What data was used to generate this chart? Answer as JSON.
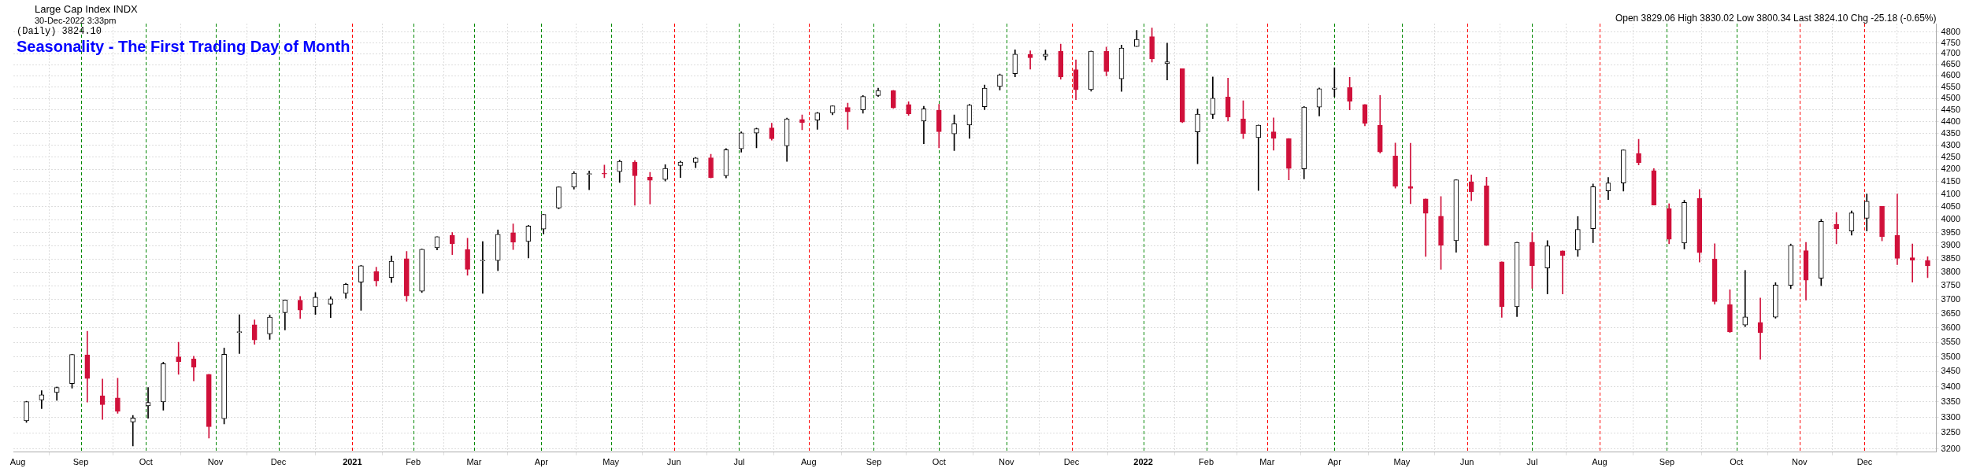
{
  "chart_data": {
    "type": "candlestick",
    "title": "Seasonality - The First Trading Day of Month",
    "subtitle": "Large Cap Index INDX",
    "annotations": [
      "30-Dec-2022 3:33pm",
      "(Daily) 3824.10",
      "Open 3829.06 High 3830.02 Low 3800.34 Last 3824.10 Chg -25.18 (-0.65%)"
    ],
    "x": [
      "2020-08-07",
      "2020-08-14",
      "2020-08-21",
      "2020-08-28",
      "2020-09-04",
      "2020-09-11",
      "2020-09-18",
      "2020-09-25",
      "2020-10-02",
      "2020-10-09",
      "2020-10-16",
      "2020-10-23",
      "2020-10-30",
      "2020-11-06",
      "2020-11-13",
      "2020-11-20",
      "2020-11-27",
      "2020-12-04",
      "2020-12-11",
      "2020-12-18",
      "2020-12-25",
      "2021-01-01",
      "2021-01-08",
      "2021-01-15",
      "2021-01-22",
      "2021-01-29",
      "2021-02-05",
      "2021-02-12",
      "2021-02-19",
      "2021-02-26",
      "2021-03-05",
      "2021-03-12",
      "2021-03-19",
      "2021-03-26",
      "2021-04-02",
      "2021-04-09",
      "2021-04-16",
      "2021-04-23",
      "2021-04-30",
      "2021-05-07",
      "2021-05-14",
      "2021-05-21",
      "2021-05-28",
      "2021-06-04",
      "2021-06-11",
      "2021-06-18",
      "2021-06-25",
      "2021-07-02",
      "2021-07-09",
      "2021-07-16",
      "2021-07-23",
      "2021-07-30",
      "2021-08-06",
      "2021-08-13",
      "2021-08-20",
      "2021-08-27",
      "2021-09-03",
      "2021-09-10",
      "2021-09-17",
      "2021-09-24",
      "2021-10-01",
      "2021-10-08",
      "2021-10-15",
      "2021-10-22",
      "2021-10-29",
      "2021-11-05",
      "2021-11-12",
      "2021-11-19",
      "2021-11-26",
      "2021-12-03",
      "2021-12-10",
      "2021-12-17",
      "2021-12-24",
      "2021-12-31",
      "2022-01-07",
      "2022-01-14",
      "2022-01-21",
      "2022-01-28",
      "2022-02-04",
      "2022-02-11",
      "2022-02-18",
      "2022-02-25",
      "2022-03-04",
      "2022-03-11",
      "2022-03-18",
      "2022-03-25",
      "2022-04-01",
      "2022-04-08",
      "2022-04-15",
      "2022-04-22",
      "2022-04-29",
      "2022-05-06",
      "2022-05-13",
      "2022-05-20",
      "2022-05-27",
      "2022-06-03",
      "2022-06-10",
      "2022-06-17",
      "2022-06-24",
      "2022-07-01",
      "2022-07-08",
      "2022-07-15",
      "2022-07-22",
      "2022-07-29",
      "2022-08-05",
      "2022-08-12",
      "2022-08-19",
      "2022-08-26",
      "2022-09-02",
      "2022-09-09",
      "2022-09-16",
      "2022-09-23",
      "2022-09-30",
      "2022-10-07",
      "2022-10-14",
      "2022-10-21",
      "2022-10-28",
      "2022-11-04",
      "2022-11-11",
      "2022-11-18",
      "2022-11-25",
      "2022-12-02",
      "2022-12-09",
      "2022-12-16",
      "2022-12-23",
      "2022-12-30"
    ],
    "ohlc": [
      [
        3289,
        3352,
        3284,
        3351
      ],
      [
        3356,
        3387,
        3328,
        3373
      ],
      [
        3381,
        3399,
        3355,
        3397
      ],
      [
        3410,
        3509,
        3395,
        3508
      ],
      [
        3507,
        3588,
        3349,
        3427
      ],
      [
        3370,
        3425,
        3293,
        3341
      ],
      [
        3363,
        3428,
        3313,
        3319
      ],
      [
        3285,
        3306,
        3209,
        3298
      ],
      [
        3337,
        3397,
        3297,
        3348
      ],
      [
        3350,
        3482,
        3323,
        3477
      ],
      [
        3500,
        3550,
        3441,
        3484
      ],
      [
        3493,
        3502,
        3419,
        3465
      ],
      [
        3441,
        3441,
        3234,
        3270
      ],
      [
        3296,
        3530,
        3279,
        3509
      ],
      [
        3584,
        3646,
        3511,
        3585
      ],
      [
        3611,
        3628,
        3543,
        3558
      ],
      [
        3579,
        3645,
        3560,
        3638
      ],
      [
        3654,
        3699,
        3593,
        3699
      ],
      [
        3698,
        3712,
        3633,
        3663
      ],
      [
        3675,
        3726,
        3647,
        3709
      ],
      [
        3684,
        3711,
        3636,
        3703
      ],
      [
        3723,
        3760,
        3705,
        3756
      ],
      [
        3764,
        3826,
        3662,
        3824
      ],
      [
        3803,
        3819,
        3749,
        3768
      ],
      [
        3781,
        3861,
        3762,
        3841
      ],
      [
        3851,
        3878,
        3694,
        3714
      ],
      [
        3731,
        3887,
        3726,
        3886
      ],
      [
        3892,
        3934,
        3884,
        3934
      ],
      [
        3939,
        3950,
        3866,
        3907
      ],
      [
        3885,
        3928,
        3789,
        3811
      ],
      [
        3842,
        3915,
        3723,
        3842
      ],
      [
        3844,
        3960,
        3806,
        3943
      ],
      [
        3949,
        3983,
        3885,
        3913
      ],
      [
        3916,
        3978,
        3853,
        3975
      ],
      [
        3963,
        4020,
        3944,
        4020
      ],
      [
        4045,
        4129,
        4042,
        4129
      ],
      [
        4128,
        4191,
        4120,
        4185
      ],
      [
        4180,
        4194,
        4118,
        4180
      ],
      [
        4185,
        4218,
        4166,
        4181
      ],
      [
        4191,
        4238,
        4147,
        4233
      ],
      [
        4229,
        4236,
        4056,
        4174
      ],
      [
        4169,
        4188,
        4061,
        4156
      ],
      [
        4159,
        4219,
        4153,
        4204
      ],
      [
        4216,
        4234,
        4167,
        4230
      ],
      [
        4229,
        4249,
        4207,
        4247
      ],
      [
        4248,
        4262,
        4165,
        4166
      ],
      [
        4174,
        4286,
        4165,
        4281
      ],
      [
        4285,
        4356,
        4271,
        4352
      ],
      [
        4351,
        4372,
        4289,
        4370
      ],
      [
        4373,
        4393,
        4321,
        4327
      ],
      [
        4297,
        4415,
        4233,
        4412
      ],
      [
        4409,
        4429,
        4365,
        4395
      ],
      [
        4406,
        4440,
        4367,
        4437
      ],
      [
        4438,
        4468,
        4429,
        4468
      ],
      [
        4461,
        4480,
        4367,
        4442
      ],
      [
        4450,
        4513,
        4436,
        4509
      ],
      [
        4513,
        4545,
        4509,
        4535
      ],
      [
        4535,
        4536,
        4457,
        4459
      ],
      [
        4474,
        4486,
        4427,
        4433
      ],
      [
        4402,
        4466,
        4306,
        4455
      ],
      [
        4449,
        4475,
        4289,
        4357
      ],
      [
        4348,
        4429,
        4278,
        4391
      ],
      [
        4385,
        4475,
        4329,
        4471
      ],
      [
        4464,
        4559,
        4451,
        4545
      ],
      [
        4553,
        4608,
        4537,
        4605
      ],
      [
        4610,
        4718,
        4596,
        4698
      ],
      [
        4697,
        4714,
        4630,
        4682
      ],
      [
        4689,
        4717,
        4672,
        4698
      ],
      [
        4712,
        4744,
        4585,
        4595
      ],
      [
        4628,
        4672,
        4495,
        4538
      ],
      [
        4539,
        4713,
        4532,
        4712
      ],
      [
        4712,
        4731,
        4600,
        4620
      ],
      [
        4587,
        4740,
        4531,
        4726
      ],
      [
        4733,
        4808,
        4733,
        4766
      ],
      [
        4779,
        4819,
        4662,
        4677
      ],
      [
        4655,
        4749,
        4582,
        4663
      ],
      [
        4632,
        4632,
        4395,
        4398
      ],
      [
        4356,
        4454,
        4223,
        4432
      ],
      [
        4431,
        4595,
        4413,
        4501
      ],
      [
        4506,
        4590,
        4402,
        4419
      ],
      [
        4412,
        4490,
        4328,
        4349
      ],
      [
        4332,
        4386,
        4115,
        4385
      ],
      [
        4356,
        4416,
        4279,
        4329
      ],
      [
        4328,
        4328,
        4157,
        4204
      ],
      [
        4202,
        4465,
        4161,
        4463
      ],
      [
        4462,
        4546,
        4424,
        4543
      ],
      [
        4541,
        4637,
        4507,
        4546
      ],
      [
        4548,
        4593,
        4450,
        4488
      ],
      [
        4474,
        4474,
        4382,
        4392
      ],
      [
        4385,
        4513,
        4267,
        4272
      ],
      [
        4255,
        4309,
        4124,
        4132
      ],
      [
        4130,
        4308,
        4062,
        4123
      ],
      [
        4081,
        4081,
        3859,
        4024
      ],
      [
        4013,
        4091,
        3811,
        3901
      ],
      [
        3919,
        4158,
        3875,
        4158
      ],
      [
        4150,
        4178,
        4074,
        4109
      ],
      [
        4134,
        4168,
        3900,
        3901
      ],
      [
        3839,
        3839,
        3637,
        3675
      ],
      [
        3675,
        3913,
        3640,
        3912
      ],
      [
        3913,
        3950,
        3741,
        3825
      ],
      [
        3816,
        3919,
        3721,
        3899
      ],
      [
        3880,
        3880,
        3721,
        3863
      ],
      [
        3883,
        4012,
        3859,
        3962
      ],
      [
        3965,
        4141,
        3911,
        4130
      ],
      [
        4113,
        4167,
        4079,
        4145
      ],
      [
        4145,
        4280,
        4112,
        4280
      ],
      [
        4266,
        4325,
        4218,
        4228
      ],
      [
        4195,
        4203,
        4057,
        4057
      ],
      [
        4043,
        4062,
        3907,
        3924
      ],
      [
        3910,
        4076,
        3887,
        4067
      ],
      [
        4083,
        4119,
        3838,
        3873
      ],
      [
        3849,
        3907,
        3684,
        3693
      ],
      [
        3682,
        3736,
        3584,
        3586
      ],
      [
        3610,
        3807,
        3604,
        3639
      ],
      [
        3619,
        3706,
        3492,
        3583
      ],
      [
        3638,
        3762,
        3634,
        3753
      ],
      [
        3752,
        3906,
        3740,
        3901
      ],
      [
        3881,
        3912,
        3699,
        3771
      ],
      [
        3778,
        4001,
        3751,
        3993
      ],
      [
        3982,
        4028,
        3907,
        3965
      ],
      [
        3956,
        4034,
        3940,
        4026
      ],
      [
        4005,
        4101,
        3956,
        4072
      ],
      [
        4052,
        4052,
        3918,
        3934
      ],
      [
        3939,
        4101,
        3828,
        3852
      ],
      [
        3854,
        3906,
        3764,
        3845
      ],
      [
        3843,
        3858,
        3780,
        3824
      ]
    ],
    "colors": [
      "#000000",
      "#000000",
      "#000000",
      "#000000",
      "#d0103a",
      "#d0103a",
      "#d0103a",
      "#000000",
      "#000000",
      "#000000",
      "#d0103a",
      "#d0103a",
      "#d0103a",
      "#000000",
      "#000000",
      "#d0103a",
      "#000000",
      "#000000",
      "#d0103a",
      "#000000",
      "#000000",
      "#000000",
      "#000000",
      "#d0103a",
      "#000000",
      "#d0103a",
      "#000000",
      "#000000",
      "#d0103a",
      "#d0103a",
      "#000000",
      "#000000",
      "#d0103a",
      "#000000",
      "#000000",
      "#000000",
      "#000000",
      "#000000",
      "#d0103a",
      "#000000",
      "#d0103a",
      "#d0103a",
      "#000000",
      "#000000",
      "#000000",
      "#d0103a",
      "#000000",
      "#000000",
      "#000000",
      "#d0103a",
      "#000000",
      "#d0103a",
      "#000000",
      "#000000",
      "#d0103a",
      "#000000",
      "#000000",
      "#d0103a",
      "#d0103a",
      "#000000",
      "#d0103a",
      "#000000",
      "#000000",
      "#000000",
      "#000000",
      "#000000",
      "#d0103a",
      "#000000",
      "#d0103a",
      "#d0103a",
      "#000000",
      "#d0103a",
      "#000000",
      "#000000",
      "#d0103a",
      "#000000",
      "#d0103a",
      "#000000",
      "#000000",
      "#d0103a",
      "#d0103a",
      "#000000",
      "#d0103a",
      "#d0103a",
      "#000000",
      "#000000",
      "#000000",
      "#d0103a",
      "#d0103a",
      "#d0103a",
      "#d0103a",
      "#d0103a",
      "#d0103a",
      "#d0103a",
      "#000000",
      "#d0103a",
      "#d0103a",
      "#d0103a",
      "#000000",
      "#d0103a",
      "#000000",
      "#d0103a",
      "#000000",
      "#000000",
      "#000000",
      "#000000",
      "#d0103a",
      "#d0103a",
      "#d0103a",
      "#000000",
      "#d0103a",
      "#d0103a",
      "#d0103a",
      "#000000",
      "#d0103a",
      "#000000",
      "#000000",
      "#d0103a",
      "#000000",
      "#d0103a",
      "#000000",
      "#000000",
      "#d0103a",
      "#d0103a",
      "#d0103a",
      "#d0103a"
    ],
    "log": true,
    "ylim": [
      3190,
      4840
    ],
    "yticks": [
      3200,
      3250,
      3300,
      3350,
      3400,
      3450,
      3500,
      3550,
      3600,
      3650,
      3700,
      3750,
      3800,
      3850,
      3900,
      3950,
      4000,
      4050,
      4100,
      4150,
      4200,
      4250,
      4300,
      4350,
      4400,
      4450,
      4500,
      4550,
      4600,
      4650,
      4700,
      4750,
      4800
    ],
    "xlim": [
      "2020-08-01",
      "2023-01-03"
    ],
    "xticks": [
      {
        "value": "2020-08-03",
        "label": "Aug"
      },
      {
        "value": "2020-09-01",
        "label": "Sep"
      },
      {
        "value": "2020-10-01",
        "label": "Oct"
      },
      {
        "value": "2020-11-02",
        "label": "Nov"
      },
      {
        "value": "2020-12-01",
        "label": "Dec"
      },
      {
        "value": "2021-01-04",
        "label": "2021"
      },
      {
        "value": "2021-02-01",
        "label": "Feb"
      },
      {
        "value": "2021-03-01",
        "label": "Mar"
      },
      {
        "value": "2021-04-01",
        "label": "Apr"
      },
      {
        "value": "2021-05-03",
        "label": "May"
      },
      {
        "value": "2021-06-01",
        "label": "Jun"
      },
      {
        "value": "2021-07-01",
        "label": "Jul"
      },
      {
        "value": "2021-08-02",
        "label": "Aug"
      },
      {
        "value": "2021-09-01",
        "label": "Sep"
      },
      {
        "value": "2021-10-01",
        "label": "Oct"
      },
      {
        "value": "2021-11-01",
        "label": "Nov"
      },
      {
        "value": "2021-12-01",
        "label": "Dec"
      },
      {
        "value": "2022-01-03",
        "label": "2022"
      },
      {
        "value": "2022-02-01",
        "label": "Feb"
      },
      {
        "value": "2022-03-01",
        "label": "Mar"
      },
      {
        "value": "2022-04-01",
        "label": "Apr"
      },
      {
        "value": "2022-05-02",
        "label": "May"
      },
      {
        "value": "2022-06-01",
        "label": "Jun"
      },
      {
        "value": "2022-07-01",
        "label": "Jul"
      },
      {
        "value": "2022-08-01",
        "label": "Aug"
      },
      {
        "value": "2022-09-01",
        "label": "Sep"
      },
      {
        "value": "2022-10-03",
        "label": "Oct"
      },
      {
        "value": "2022-11-01",
        "label": "Nov"
      },
      {
        "value": "2022-12-01",
        "label": "Dec"
      }
    ],
    "grid": true,
    "ref_lines": [
      {
        "axis": "x",
        "value": "2020-09-01",
        "color": "#008800",
        "line_style": "dashed"
      },
      {
        "axis": "x",
        "value": "2020-10-01",
        "color": "#008800",
        "line_style": "dashed"
      },
      {
        "axis": "x",
        "value": "2020-11-02",
        "color": "#008800",
        "line_style": "dashed"
      },
      {
        "axis": "x",
        "value": "2020-12-01",
        "color": "#008800",
        "line_style": "dashed"
      },
      {
        "axis": "x",
        "value": "2021-01-04",
        "color": "#ff0000",
        "line_style": "dashed"
      },
      {
        "axis": "x",
        "value": "2021-02-01",
        "color": "#008800",
        "line_style": "dashed"
      },
      {
        "axis": "x",
        "value": "2021-03-01",
        "color": "#008800",
        "line_style": "dashed"
      },
      {
        "axis": "x",
        "value": "2021-04-01",
        "color": "#008800",
        "line_style": "dashed"
      },
      {
        "axis": "x",
        "value": "2021-05-03",
        "color": "#008800",
        "line_style": "dashed"
      },
      {
        "axis": "x",
        "value": "2021-06-01",
        "color": "#ff0000",
        "line_style": "dashed"
      },
      {
        "axis": "x",
        "value": "2021-07-01",
        "color": "#008800",
        "line_style": "dashed"
      },
      {
        "axis": "x",
        "value": "2021-08-02",
        "color": "#ff0000",
        "line_style": "dashed"
      },
      {
        "axis": "x",
        "value": "2021-09-01",
        "color": "#008800",
        "line_style": "dashed"
      },
      {
        "axis": "x",
        "value": "2021-10-01",
        "color": "#008800",
        "line_style": "dashed"
      },
      {
        "axis": "x",
        "value": "2021-11-01",
        "color": "#008800",
        "line_style": "dashed"
      },
      {
        "axis": "x",
        "value": "2021-12-01",
        "color": "#ff0000",
        "line_style": "dashed"
      },
      {
        "axis": "x",
        "value": "2022-01-03",
        "color": "#008800",
        "line_style": "dashed"
      },
      {
        "axis": "x",
        "value": "2022-02-01",
        "color": "#008800",
        "line_style": "dashed"
      },
      {
        "axis": "x",
        "value": "2022-03-01",
        "color": "#ff0000",
        "line_style": "dashed"
      },
      {
        "axis": "x",
        "value": "2022-04-01",
        "color": "#008800",
        "line_style": "dashed"
      },
      {
        "axis": "x",
        "value": "2022-05-02",
        "color": "#008800",
        "line_style": "dashed"
      },
      {
        "axis": "x",
        "value": "2022-06-01",
        "color": "#ff0000",
        "line_style": "dashed"
      },
      {
        "axis": "x",
        "value": "2022-07-01",
        "color": "#008800",
        "line_style": "dashed"
      },
      {
        "axis": "x",
        "value": "2022-08-01",
        "color": "#ff0000",
        "line_style": "dashed"
      },
      {
        "axis": "x",
        "value": "2022-09-01",
        "color": "#008800",
        "line_style": "dashed"
      },
      {
        "axis": "x",
        "value": "2022-10-03",
        "color": "#008800",
        "line_style": "dashed"
      },
      {
        "axis": "x",
        "value": "2022-11-01",
        "color": "#ff0000",
        "line_style": "dashed"
      },
      {
        "axis": "x",
        "value": "2022-12-01",
        "color": "#ff0000",
        "line_style": "dashed"
      }
    ]
  }
}
